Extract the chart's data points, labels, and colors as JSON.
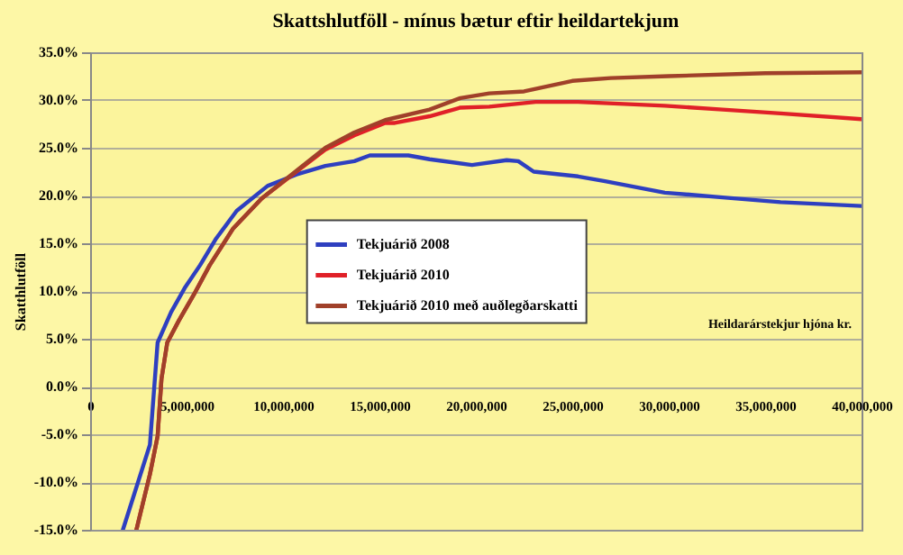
{
  "chart_data": {
    "type": "line",
    "title": "Skattshlutföll - mínus bætur eftir heildartekjum",
    "xlabel": "Heildarárstekjur hjóna kr.",
    "ylabel": "Skatthlutföll",
    "xlim": [
      0,
      40000000
    ],
    "ylim": [
      -15,
      35
    ],
    "xticks": [
      {
        "value": 0,
        "label": "0"
      },
      {
        "value": 5000000,
        "label": "5,000,000"
      },
      {
        "value": 10000000,
        "label": "10,000,000"
      },
      {
        "value": 15000000,
        "label": "15,000,000"
      },
      {
        "value": 20000000,
        "label": "20,000,000"
      },
      {
        "value": 25000000,
        "label": "25,000,000"
      },
      {
        "value": 30000000,
        "label": "30,000,000"
      },
      {
        "value": 35000000,
        "label": "35,000,000"
      },
      {
        "value": 40000000,
        "label": "40,000,000"
      }
    ],
    "yticks": [
      {
        "value": -15,
        "label": "-15.0%"
      },
      {
        "value": -10,
        "label": "-10.0%"
      },
      {
        "value": -5,
        "label": "-5.0%"
      },
      {
        "value": 0,
        "label": "0.0%"
      },
      {
        "value": 5,
        "label": "5.0%"
      },
      {
        "value": 10,
        "label": "10.0%"
      },
      {
        "value": 15,
        "label": "15.0%"
      },
      {
        "value": 20,
        "label": "20.0%"
      },
      {
        "value": 25,
        "label": "25.0%"
      },
      {
        "value": 30,
        "label": "30.0%"
      },
      {
        "value": 35,
        "label": "35.0%"
      }
    ],
    "grid": "y",
    "legend": "center",
    "line_style": "solid",
    "series": [
      {
        "name": "Tekjuárið 2008",
        "color": "#2e3fc0",
        "x": [
          1700000,
          3100000,
          3500000,
          4200000,
          4900000,
          5700000,
          6500000,
          7600000,
          9200000,
          10700000,
          12200000,
          13700000,
          14500000,
          16500000,
          17600000,
          19800000,
          21600000,
          22200000,
          23000000,
          25300000,
          26700000,
          29800000,
          32800000,
          35800000,
          40000000
        ],
        "values": [
          -15,
          -6.1,
          4.6,
          7.8,
          10.3,
          12.7,
          15.4,
          18.4,
          21,
          22.2,
          23.1,
          23.6,
          24.2,
          24.2,
          23.8,
          23.2,
          23.7,
          23.6,
          22.5,
          22,
          21.5,
          20.3,
          19.8,
          19.3,
          18.9
        ]
      },
      {
        "name": "Tekjuárið 2010",
        "color": "#e02028",
        "x": [
          2400000,
          3100000,
          3500000,
          3700000,
          4000000,
          4600000,
          5400000,
          6200000,
          7400000,
          8900000,
          10700000,
          12200000,
          13700000,
          15300000,
          15800000,
          17600000,
          19200000,
          20700000,
          23100000,
          25300000,
          29800000,
          32800000,
          35800000,
          40000000
        ],
        "values": [
          -15,
          -9.2,
          -5.2,
          0.8,
          4.6,
          6.9,
          9.7,
          12.7,
          16.5,
          19.7,
          22.5,
          24.8,
          26.3,
          27.6,
          27.6,
          28.3,
          29.2,
          29.3,
          29.8,
          29.8,
          29.4,
          29,
          28.6,
          28
        ]
      },
      {
        "name": "Tekjuárið 2010 með auðlegðarskatti",
        "color": "#a0402a",
        "x": [
          2400000,
          3100000,
          3500000,
          3700000,
          4000000,
          4600000,
          5400000,
          6200000,
          7400000,
          8900000,
          10700000,
          12200000,
          13700000,
          15300000,
          17600000,
          19200000,
          20700000,
          22500000,
          25000000,
          27000000,
          30000000,
          35000000,
          40000000
        ],
        "values": [
          -15,
          -9.2,
          -5.2,
          0.8,
          4.6,
          6.9,
          9.7,
          12.7,
          16.5,
          19.7,
          22.6,
          25,
          26.6,
          27.9,
          29,
          30.2,
          30.7,
          30.9,
          32,
          32.3,
          32.5,
          32.8,
          32.9
        ]
      }
    ]
  }
}
